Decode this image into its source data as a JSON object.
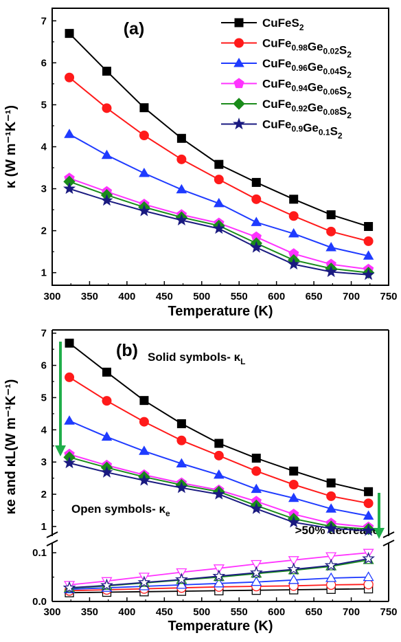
{
  "colors": {
    "black": "#000000",
    "red": "#ff1a1a",
    "blue": "#1f3bff",
    "magenta": "#ff33ff",
    "green": "#1a8c1a",
    "navy": "#1a1a80",
    "arrow": "#1fae4a",
    "annotation": "#1a2a70"
  },
  "chart_data": [
    {
      "type": "line",
      "panel_label": "(a)",
      "xlabel": "Temperature (K)",
      "ylabel": "κ (W m⁻¹K⁻¹)",
      "xlim": [
        300,
        750
      ],
      "ylim": [
        0.7,
        7.3
      ],
      "x_ticks": [
        "300",
        "350",
        "400",
        "450",
        "500",
        "550",
        "600",
        "650",
        "700",
        "750"
      ],
      "y_ticks": [
        "1",
        "2",
        "3",
        "4",
        "5",
        "6",
        "7"
      ],
      "x": [
        323,
        373,
        423,
        473,
        523,
        573,
        623,
        673,
        723
      ],
      "series": [
        {
          "name": "CuFeS2",
          "legend": {
            "base": "CuFe",
            "parts": [
              [
                "S",
                "2"
              ]
            ]
          },
          "color_key": "black",
          "marker": "square",
          "values": [
            6.7,
            5.8,
            4.93,
            4.2,
            3.58,
            3.15,
            2.75,
            2.38,
            2.1
          ]
        },
        {
          "name": "CuFe0.98Ge0.02S2",
          "legend": {
            "base": "CuFe",
            "parts": [
              [
                "",
                "0.98"
              ],
              [
                "Ge",
                "0.02"
              ],
              [
                "S",
                "2"
              ]
            ]
          },
          "color_key": "red",
          "marker": "circle",
          "values": [
            5.65,
            4.92,
            4.27,
            3.7,
            3.22,
            2.75,
            2.35,
            1.98,
            1.75
          ]
        },
        {
          "name": "CuFe0.96Ge0.04S2",
          "legend": {
            "base": "CuFe",
            "parts": [
              [
                "",
                "0.96"
              ],
              [
                "Ge",
                "0.04"
              ],
              [
                "S",
                "2"
              ]
            ]
          },
          "color_key": "blue",
          "marker": "triangle",
          "values": [
            4.3,
            3.8,
            3.37,
            2.98,
            2.65,
            2.2,
            1.93,
            1.6,
            1.4
          ]
        },
        {
          "name": "CuFe0.94Ge0.06S2",
          "legend": {
            "base": "CuFe",
            "parts": [
              [
                "",
                "0.94"
              ],
              [
                "Ge",
                "0.06"
              ],
              [
                "S",
                "2"
              ]
            ]
          },
          "color_key": "magenta",
          "marker": "pentagon",
          "values": [
            3.25,
            2.93,
            2.63,
            2.38,
            2.18,
            1.85,
            1.45,
            1.2,
            1.08
          ]
        },
        {
          "name": "CuFe0.92Ge0.08S2",
          "legend": {
            "base": "CuFe",
            "parts": [
              [
                "",
                "0.92"
              ],
              [
                "Ge",
                "0.08"
              ],
              [
                "S",
                "2"
              ]
            ]
          },
          "color_key": "green",
          "marker": "diamond",
          "values": [
            3.17,
            2.85,
            2.56,
            2.32,
            2.12,
            1.7,
            1.3,
            1.1,
            1.0
          ]
        },
        {
          "name": "CuFe0.9Ge0.1S2",
          "legend": {
            "base": "CuFe",
            "parts": [
              [
                "",
                "0.9"
              ],
              [
                "Ge",
                "0.1"
              ],
              [
                "S",
                "2"
              ]
            ]
          },
          "color_key": "navy",
          "marker": "star",
          "values": [
            3.0,
            2.72,
            2.47,
            2.25,
            2.05,
            1.6,
            1.2,
            1.02,
            0.95
          ]
        }
      ]
    },
    {
      "type": "line",
      "panel_label": "(b)",
      "xlabel": "Temperature (K)",
      "ylabel": "κe and κL(W m⁻¹K⁻¹)",
      "xlim": [
        300,
        750
      ],
      "ylim_upper": [
        0.7,
        7.1
      ],
      "ylim_lower": [
        0.0,
        0.12
      ],
      "broken_axis": true,
      "x_ticks": [
        "300",
        "350",
        "400",
        "450",
        "500",
        "550",
        "600",
        "650",
        "700",
        "750"
      ],
      "y_ticks_upper": [
        "1",
        "2",
        "3",
        "4",
        "5",
        "6",
        "7"
      ],
      "y_ticks_lower": [
        "0.0",
        "0.1"
      ],
      "annotations": {
        "solid": "Solid symbols- κ",
        "solid_sub": "L",
        "open": "Open symbols- κ",
        "open_sub": "e",
        "decrease": ">50% decrease"
      },
      "x": [
        323,
        373,
        423,
        473,
        523,
        573,
        623,
        673,
        723
      ],
      "series_solid_kappa_L": [
        {
          "name": "CuFeS2",
          "color_key": "black",
          "marker": "square",
          "values": [
            6.69,
            5.79,
            4.91,
            4.19,
            3.58,
            3.12,
            2.72,
            2.35,
            2.08
          ]
        },
        {
          "name": "CuFe0.98Ge0.02S2",
          "color_key": "red",
          "marker": "circle",
          "values": [
            5.63,
            4.9,
            4.25,
            3.67,
            3.2,
            2.72,
            2.3,
            1.94,
            1.72
          ]
        },
        {
          "name": "CuFe0.96Ge0.04S2",
          "color_key": "blue",
          "marker": "triangle",
          "values": [
            4.28,
            3.78,
            3.34,
            2.95,
            2.6,
            2.16,
            1.88,
            1.55,
            1.33
          ]
        },
        {
          "name": "CuFe0.94Ge0.06S2",
          "color_key": "magenta",
          "marker": "pentagon",
          "values": [
            3.24,
            2.9,
            2.6,
            2.35,
            2.13,
            1.78,
            1.38,
            1.1,
            0.98
          ]
        },
        {
          "name": "CuFe0.92Ge0.08S2",
          "color_key": "green",
          "marker": "diamond",
          "values": [
            3.15,
            2.83,
            2.54,
            2.29,
            2.08,
            1.65,
            1.24,
            1.0,
            0.92
          ]
        },
        {
          "name": "CuFe0.9Ge0.1S2",
          "color_key": "navy",
          "marker": "star",
          "values": [
            2.97,
            2.68,
            2.43,
            2.2,
            2.0,
            1.55,
            1.13,
            0.94,
            0.87
          ]
        }
      ],
      "series_open_kappa_e": [
        {
          "name": "CuFeS2",
          "color_key": "black",
          "marker": "square",
          "values": [
            0.018,
            0.019,
            0.02,
            0.021,
            0.022,
            0.023,
            0.024,
            0.025,
            0.026
          ]
        },
        {
          "name": "CuFe0.98Ge0.02S2",
          "color_key": "red",
          "marker": "circle",
          "values": [
            0.022,
            0.024,
            0.026,
            0.028,
            0.03,
            0.031,
            0.032,
            0.034,
            0.035
          ]
        },
        {
          "name": "CuFe0.96Ge0.04S2",
          "color_key": "blue",
          "marker": "triangle",
          "values": [
            0.025,
            0.028,
            0.031,
            0.034,
            0.037,
            0.04,
            0.044,
            0.048,
            0.05
          ]
        },
        {
          "name": "CuFe0.94Ge0.06S2",
          "color_key": "magenta",
          "marker": "triangle-down",
          "values": [
            0.034,
            0.042,
            0.051,
            0.06,
            0.068,
            0.077,
            0.085,
            0.093,
            0.1
          ]
        },
        {
          "name": "CuFe0.92Ge0.08S2",
          "color_key": "green",
          "marker": "triangle",
          "values": [
            0.027,
            0.032,
            0.038,
            0.044,
            0.05,
            0.057,
            0.064,
            0.072,
            0.085
          ]
        },
        {
          "name": "CuFe0.9Ge0.1S2",
          "color_key": "navy",
          "marker": "star",
          "values": [
            0.028,
            0.033,
            0.039,
            0.045,
            0.052,
            0.059,
            0.066,
            0.074,
            0.088
          ]
        }
      ]
    }
  ]
}
